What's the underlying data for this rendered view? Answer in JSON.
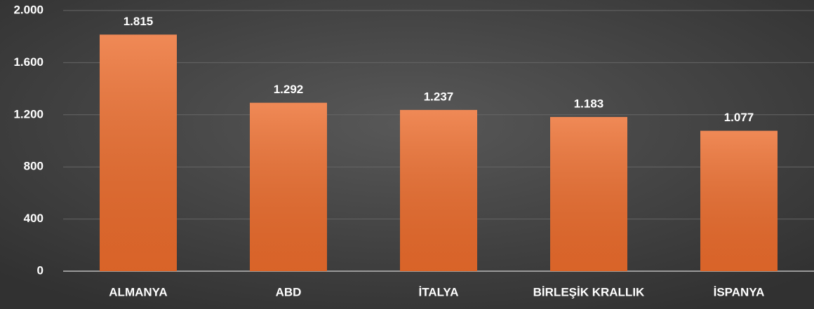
{
  "chart_data": {
    "type": "bar",
    "categories": [
      "ALMANYA",
      "ABD",
      "İTALYA",
      "BİRLEŞİK KRALLIK",
      "İSPANYA"
    ],
    "values": [
      1815,
      1292,
      1237,
      1183,
      1077
    ],
    "value_labels": [
      "1.815",
      "1.292",
      "1.237",
      "1.183",
      "1.077"
    ],
    "color": "#ec6c2c",
    "ylim": [
      0,
      2000
    ],
    "yticks": [
      0,
      400,
      800,
      {
        "value": 1200,
        "label": "1.200"
      },
      {
        "value": 1600,
        "label": "1.600"
      },
      {
        "value": 2000,
        "label": "2.000"
      }
    ],
    "grid": true
  }
}
